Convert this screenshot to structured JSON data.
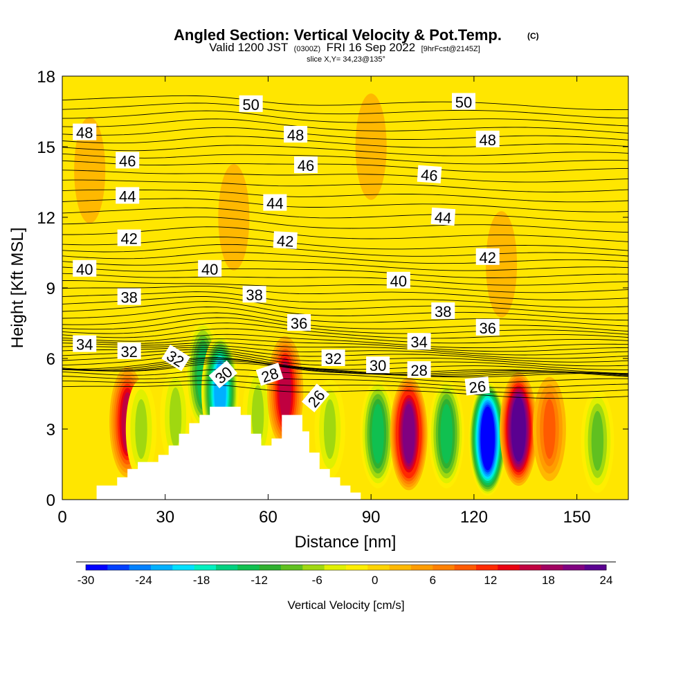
{
  "title": {
    "main": "Angled Section: Vertical Velocity & Pot.Temp.",
    "unit_tag": "(C)",
    "valid_prefix": "Valid 1200 JST",
    "valid_utc": "(0300Z)",
    "valid_date": "FRI 16 Sep 2022",
    "forecast_tag": "[9hrFcst@2145Z]",
    "slice": "slice X,Y= 34,23@135°"
  },
  "chart_data": {
    "type": "heatmap",
    "xlabel": "Distance [nm]",
    "ylabel": "Height [Kft MSL]",
    "xlim": [
      0,
      165
    ],
    "ylim": [
      0,
      18
    ],
    "x_ticks": [
      0,
      30,
      60,
      90,
      120,
      150
    ],
    "y_ticks": [
      0,
      3,
      6,
      9,
      12,
      15,
      18
    ],
    "colorbar": {
      "title": "Vertical Velocity [cm/s]",
      "range": [
        -30,
        24
      ],
      "tick_values": [
        -30,
        -24,
        -18,
        -12,
        -6,
        0,
        6,
        12,
        18,
        24
      ],
      "colors": [
        "#0000ff",
        "#0040ff",
        "#0080ff",
        "#00b0ff",
        "#00e0ff",
        "#00f0c0",
        "#00d080",
        "#10c050",
        "#30b030",
        "#60c020",
        "#a0d810",
        "#e0f000",
        "#ffee00",
        "#ffd400",
        "#ffb800",
        "#ff9c00",
        "#ff8000",
        "#ff5a00",
        "#ff2a00",
        "#e80010",
        "#c00040",
        "#a00060",
        "#800080",
        "#5a0090"
      ]
    },
    "terrain_profile": {
      "x": [
        0,
        10,
        10,
        16,
        16,
        19,
        19,
        22,
        22,
        25,
        25,
        28,
        28,
        31,
        31,
        34,
        34,
        37,
        37,
        40,
        40,
        43,
        43,
        52,
        52,
        55,
        55,
        58,
        58,
        61,
        61,
        64,
        64,
        70,
        70,
        72,
        72,
        75,
        75,
        78,
        78,
        81,
        81,
        84,
        84,
        87,
        87,
        90
      ],
      "height": [
        0,
        0,
        0.6,
        0.6,
        0.95,
        0.95,
        1.3,
        1.3,
        1.6,
        1.6,
        1.6,
        1.6,
        1.9,
        1.9,
        2.3,
        2.3,
        2.8,
        2.8,
        3.25,
        3.25,
        3.6,
        3.6,
        3.95,
        3.95,
        3.6,
        3.6,
        2.8,
        2.8,
        2.3,
        2.3,
        2.6,
        2.6,
        3.6,
        3.6,
        2.9,
        2.9,
        2.0,
        2.0,
        1.3,
        1.3,
        0.95,
        0.95,
        0.6,
        0.6,
        0.3,
        0.3,
        0,
        0
      ]
    },
    "vertical_velocity_cells": [
      {
        "x": 19,
        "y": 3.3,
        "value": 15
      },
      {
        "x": 23,
        "y": 3.0,
        "value": -6
      },
      {
        "x": 33,
        "y": 3.5,
        "value": -6
      },
      {
        "x": 41,
        "y": 5.3,
        "value": -12
      },
      {
        "x": 46,
        "y": 4.6,
        "value": -21
      },
      {
        "x": 57,
        "y": 3.6,
        "value": -6
      },
      {
        "x": 65,
        "y": 4.6,
        "value": 15
      },
      {
        "x": 78,
        "y": 3.0,
        "value": -6
      },
      {
        "x": 92,
        "y": 2.8,
        "value": -12
      },
      {
        "x": 101,
        "y": 2.8,
        "value": 21
      },
      {
        "x": 112,
        "y": 2.8,
        "value": -12
      },
      {
        "x": 124,
        "y": 2.6,
        "value": -30
      },
      {
        "x": 133,
        "y": 3.0,
        "value": 24
      },
      {
        "x": 142,
        "y": 3.0,
        "value": 9
      },
      {
        "x": 156,
        "y": 2.5,
        "value": -9
      },
      {
        "x": 8,
        "y": 14,
        "value": 3
      },
      {
        "x": 50,
        "y": 12,
        "value": 3
      },
      {
        "x": 90,
        "y": 15,
        "value": 3
      },
      {
        "x": 128,
        "y": 10,
        "value": 3
      }
    ],
    "contour_labels": [
      {
        "x": 55,
        "y": 16.8,
        "value": "50",
        "angle": 0
      },
      {
        "x": 117,
        "y": 16.9,
        "value": "50",
        "angle": 0
      },
      {
        "x": 6.5,
        "y": 15.6,
        "value": "48",
        "angle": 0
      },
      {
        "x": 68,
        "y": 15.5,
        "value": "48",
        "angle": 0
      },
      {
        "x": 124,
        "y": 15.3,
        "value": "48",
        "angle": 0
      },
      {
        "x": 19,
        "y": 14.4,
        "value": "46",
        "angle": 0
      },
      {
        "x": 71,
        "y": 14.2,
        "value": "46",
        "angle": 0
      },
      {
        "x": 107,
        "y": 13.8,
        "value": "46",
        "angle": 4
      },
      {
        "x": 19,
        "y": 12.9,
        "value": "44",
        "angle": 0
      },
      {
        "x": 62,
        "y": 12.6,
        "value": "44",
        "angle": 0
      },
      {
        "x": 111,
        "y": 12.0,
        "value": "44",
        "angle": 4
      },
      {
        "x": 19.5,
        "y": 11.1,
        "value": "42",
        "angle": 0
      },
      {
        "x": 65,
        "y": 11.0,
        "value": "42",
        "angle": 3
      },
      {
        "x": 124,
        "y": 10.3,
        "value": "42",
        "angle": 0
      },
      {
        "x": 6.5,
        "y": 9.8,
        "value": "40",
        "angle": 0
      },
      {
        "x": 43,
        "y": 9.8,
        "value": "40",
        "angle": 0
      },
      {
        "x": 98,
        "y": 9.3,
        "value": "40",
        "angle": 0
      },
      {
        "x": 19.5,
        "y": 8.6,
        "value": "38",
        "angle": 0
      },
      {
        "x": 56,
        "y": 8.7,
        "value": "38",
        "angle": 0
      },
      {
        "x": 111,
        "y": 8.0,
        "value": "38",
        "angle": 0
      },
      {
        "x": 69,
        "y": 7.5,
        "value": "36",
        "angle": 0
      },
      {
        "x": 124,
        "y": 7.3,
        "value": "36",
        "angle": 0
      },
      {
        "x": 6.5,
        "y": 6.6,
        "value": "34",
        "angle": 0
      },
      {
        "x": 104,
        "y": 6.7,
        "value": "34",
        "angle": 0
      },
      {
        "x": 19.5,
        "y": 6.3,
        "value": "32",
        "angle": 0
      },
      {
        "x": 33,
        "y": 6.0,
        "value": "32",
        "angle": 32
      },
      {
        "x": 79,
        "y": 6.0,
        "value": "32",
        "angle": 0
      },
      {
        "x": 47,
        "y": 5.3,
        "value": "30",
        "angle": -40
      },
      {
        "x": 92,
        "y": 5.7,
        "value": "30",
        "angle": 0
      },
      {
        "x": 60.5,
        "y": 5.3,
        "value": "28",
        "angle": -18
      },
      {
        "x": 104,
        "y": 5.5,
        "value": "28",
        "angle": 0
      },
      {
        "x": 74,
        "y": 4.3,
        "value": "26",
        "angle": -50
      },
      {
        "x": 121,
        "y": 4.8,
        "value": "26",
        "angle": -6
      }
    ]
  }
}
